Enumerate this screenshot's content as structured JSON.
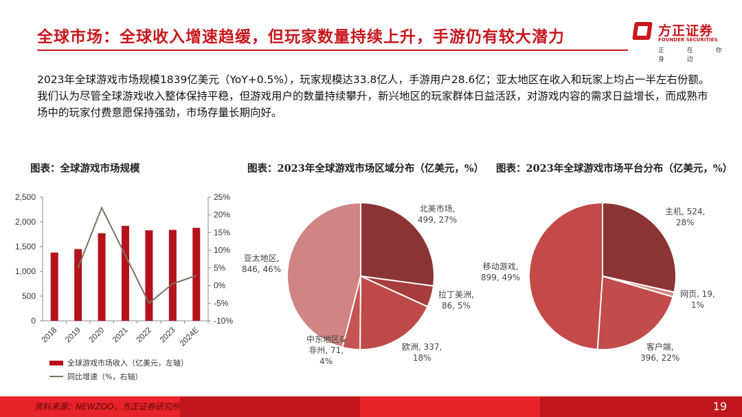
{
  "header": {
    "title": "全球市场：全球收入增速趋缓，但玩家数量持续上升，手游仍有较大潜力",
    "logo_cn": "方正证券",
    "logo_en": "FOUNDER SECURITIES",
    "slogan": "正 在 你 身 边"
  },
  "paragraph": "2023年全球游戏市场规模1839亿美元（YoY+0.5%），玩家规模达33.8亿人，手游用户28.6亿；亚太地区在收入和玩家上均占一半左右份额。我们认为尽管全球游戏收入整体保持平稳，但游戏用户的数量持续攀升，新兴地区的玩家群体日益活跃，对游戏内容的需求日益增长，而成熟市场中的玩家付费意愿保持强劲，市场存量长期向好。",
  "chart_data": [
    {
      "type": "bar",
      "title": "图表：全球游戏市场规模",
      "categories": [
        "2018",
        "2019",
        "2020",
        "2021",
        "2022",
        "2023",
        "2024E"
      ],
      "series": [
        {
          "name": "全球游戏市场收入（亿美元，左轴）",
          "type": "bar",
          "values": [
            1380,
            1450,
            1770,
            1920,
            1830,
            1839,
            1880
          ],
          "color": "#b5121b"
        },
        {
          "name": "同比增速（%，右轴）",
          "type": "line",
          "values": [
            null,
            5,
            22,
            8.5,
            -5,
            0.5,
            2.8
          ],
          "color": "#7a7060"
        }
      ],
      "ylim": [
        0,
        2500
      ],
      "yticks": [
        "0",
        "500",
        "1,000",
        "1,500",
        "2,000",
        "2,500"
      ],
      "y2lim": [
        -10,
        25
      ],
      "y2ticks": [
        "-10%",
        "-5%",
        "0%",
        "5%",
        "10%",
        "15%",
        "20%",
        "25%"
      ],
      "legend": "bottom"
    },
    {
      "type": "pie",
      "title": "图表：2023年全球游戏市场区域分布（亿美元，%）",
      "slices": [
        {
          "name": "北美市场",
          "value": 499,
          "pct": "27%",
          "color": "#8b3434"
        },
        {
          "name": "拉丁美洲",
          "value": 86,
          "pct": "5%",
          "color": "#a63c3c"
        },
        {
          "name": "欧洲",
          "value": 337,
          "pct": "18%",
          "color": "#bf4848"
        },
        {
          "name": "中东地区&非州",
          "value": 71,
          "pct": "4%",
          "color": "#c65454"
        },
        {
          "name": "亚太地区",
          "value": 846,
          "pct": "46%",
          "color": "#d08584"
        }
      ]
    },
    {
      "type": "pie",
      "title": "图表：2023年全球游戏市场平台分布（亿美元，%）",
      "slices": [
        {
          "name": "主机",
          "value": 524,
          "pct": "28%",
          "color": "#8b3434"
        },
        {
          "name": "网页",
          "value": 19,
          "pct": "1%",
          "color": "#d08584"
        },
        {
          "name": "客户端",
          "value": 396,
          "pct": "22%",
          "color": "#c24b4b"
        },
        {
          "name": "移动游戏",
          "value": 899,
          "pct": "49%",
          "color": "#c34a48"
        }
      ]
    }
  ],
  "labels": {
    "r0": "北美市场,\n499, 27%",
    "r1": "拉丁美洲,\n86, 5%",
    "r2": "欧洲, 337,\n18%",
    "r3": "中东地区&\n非州, 71,\n4%",
    "r4": "亚太地区,\n846, 46%",
    "p0": "主机, 524,\n28%",
    "p1": "网页, 19,\n1%",
    "p2": "客户端,\n396, 22%",
    "p3": "移动游戏,\n899, 49%"
  },
  "footer": {
    "source": "资料来源：NEWZOO，方正证券研究所",
    "page": "19",
    "colors": [
      "#e8222a",
      "#c0161e",
      "#e8222a",
      "#c0161e"
    ]
  }
}
